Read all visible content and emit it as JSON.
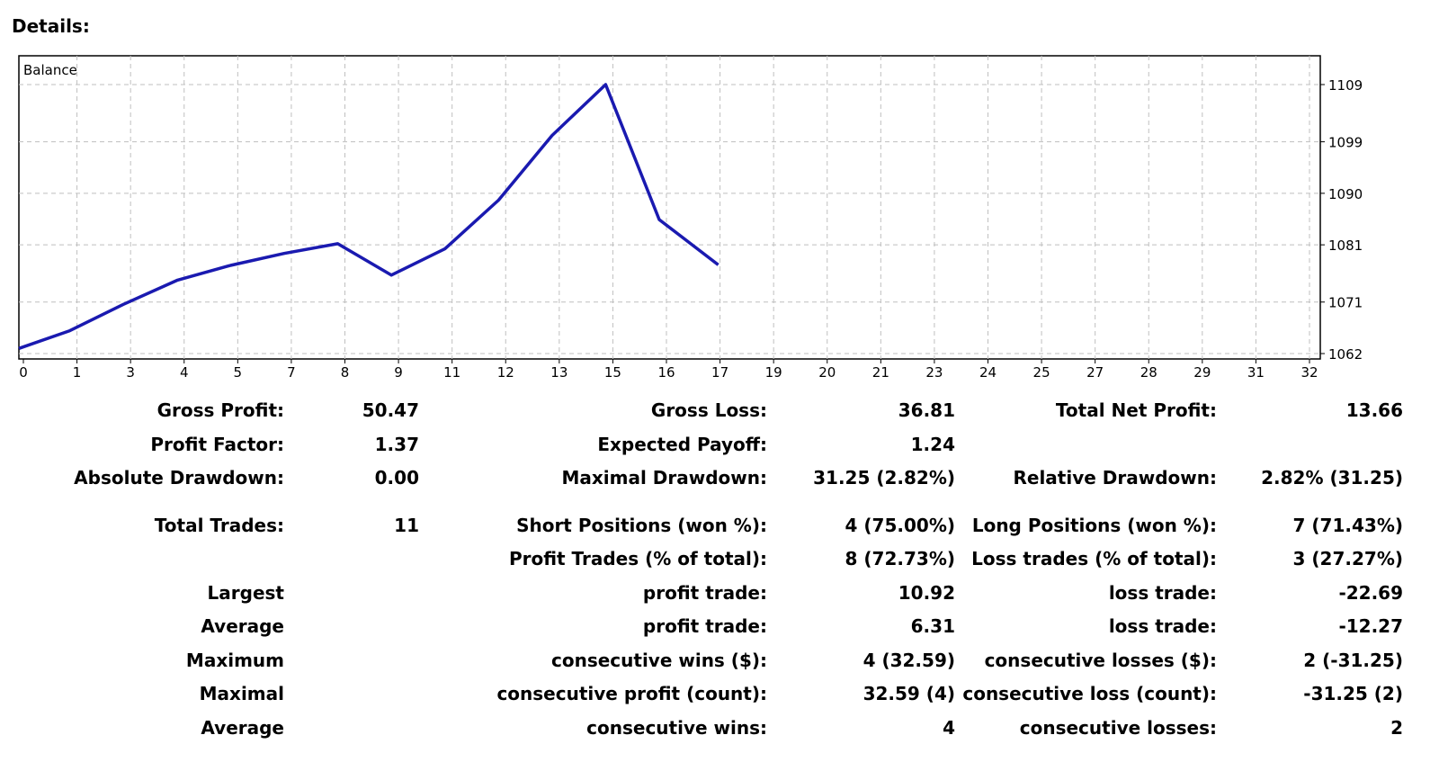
{
  "heading": "Details:",
  "chart_data": {
    "type": "line",
    "title": "Balance",
    "x_ticks": [
      "0",
      "1",
      "3",
      "4",
      "5",
      "7",
      "8",
      "9",
      "11",
      "12",
      "13",
      "15",
      "16",
      "17",
      "19",
      "20",
      "21",
      "23",
      "24",
      "25",
      "27",
      "28",
      "29",
      "31",
      "32"
    ],
    "y_ticks": [
      "1109",
      "1099",
      "1090",
      "1081",
      "1071",
      "1062"
    ],
    "ylim": [
      1062,
      1109
    ],
    "series": [
      {
        "values": [
          1062.9,
          1066.0,
          1070.6,
          1074.8,
          1077.4,
          1079.5,
          1081.2,
          1075.7,
          1080.3,
          1088.8,
          1100.1,
          1109.0,
          1085.4,
          1077.5
        ]
      }
    ],
    "grid": true,
    "line_color": "#1a1ab0"
  },
  "stats": {
    "rows": [
      {
        "l1": "Gross Profit:",
        "v1": "50.47",
        "l2": "Gross Loss:",
        "v2": "36.81",
        "l3": "Total Net Profit:",
        "v3": "13.66"
      },
      {
        "l1": "Profit Factor:",
        "v1": "1.37",
        "l2": "Expected Payoff:",
        "v2": "1.24",
        "l3": "",
        "v3": ""
      },
      {
        "l1": "Absolute Drawdown:",
        "v1": "0.00",
        "l2": "Maximal Drawdown:",
        "v2": "31.25 (2.82%)",
        "l3": "Relative Drawdown:",
        "v3": "2.82% (31.25)"
      },
      {
        "l1": "Total Trades:",
        "v1": "11",
        "l2": "Short Positions (won %):",
        "v2": "4 (75.00%)",
        "l3": "Long Positions (won %):",
        "v3": "7 (71.43%)"
      },
      {
        "l1": "",
        "v1": "",
        "l2": "Profit Trades (% of total):",
        "v2": "8 (72.73%)",
        "l3": "Loss trades (% of total):",
        "v3": "3 (27.27%)"
      },
      {
        "l1": "Largest",
        "v1": "",
        "l2": "profit trade:",
        "v2": "10.92",
        "l3": "loss trade:",
        "v3": "-22.69"
      },
      {
        "l1": "Average",
        "v1": "",
        "l2": "profit trade:",
        "v2": "6.31",
        "l3": "loss trade:",
        "v3": "-12.27"
      },
      {
        "l1": "Maximum",
        "v1": "",
        "l2": "consecutive wins ($):",
        "v2": "4 (32.59)",
        "l3": "consecutive losses ($):",
        "v3": "2 (-31.25)"
      },
      {
        "l1": "Maximal",
        "v1": "",
        "l2": "consecutive profit (count):",
        "v2": "32.59 (4)",
        "l3": "consecutive loss (count):",
        "v3": "-31.25 (2)"
      },
      {
        "l1": "Average",
        "v1": "",
        "l2": "consecutive wins:",
        "v2": "4",
        "l3": "consecutive losses:",
        "v3": "2"
      }
    ]
  }
}
